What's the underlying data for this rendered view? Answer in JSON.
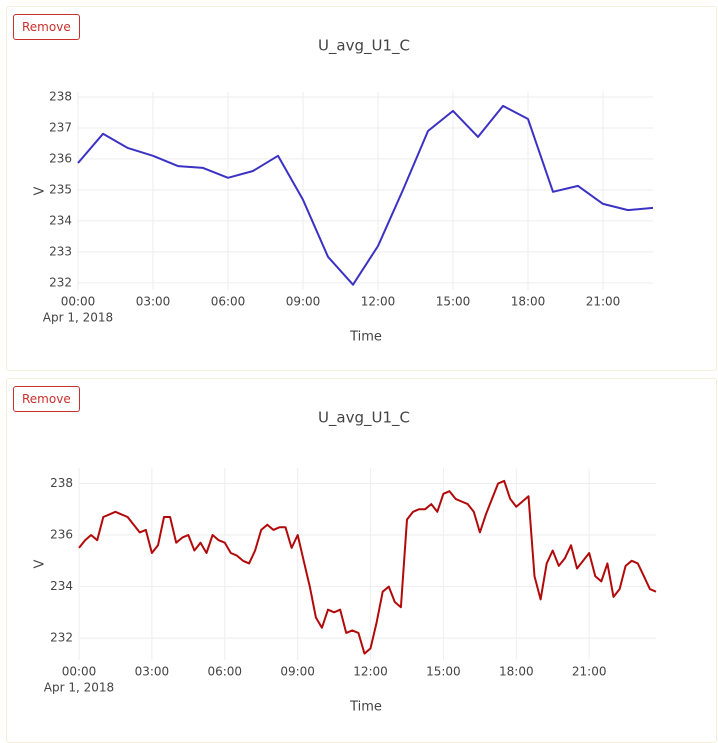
{
  "buttons": [
    "Remove",
    "Remove"
  ],
  "chart_data": [
    {
      "type": "line",
      "title": "U_avg_U1_C",
      "xlabel": "Time",
      "ylabel": "V",
      "color": "#3b32c4",
      "grid": true,
      "x": [
        "2018-04-01T00:00",
        "2018-04-01T01:00",
        "2018-04-01T02:00",
        "2018-04-01T03:00",
        "2018-04-01T04:00",
        "2018-04-01T05:00",
        "2018-04-01T06:00",
        "2018-04-01T07:00",
        "2018-04-01T08:00",
        "2018-04-01T09:00",
        "2018-04-01T10:00",
        "2018-04-01T11:00",
        "2018-04-01T12:00",
        "2018-04-01T13:00",
        "2018-04-01T14:00",
        "2018-04-01T15:00",
        "2018-04-01T16:00",
        "2018-04-01T17:00",
        "2018-04-01T18:00",
        "2018-04-01T19:00",
        "2018-04-01T20:00",
        "2018-04-01T21:00",
        "2018-04-01T22:00",
        "2018-04-01T23:00"
      ],
      "values": [
        235.87,
        236.81,
        236.35,
        236.1,
        235.77,
        235.71,
        235.39,
        235.61,
        236.1,
        234.68,
        232.84,
        231.94,
        233.19,
        235.0,
        236.9,
        237.55,
        236.71,
        237.71,
        237.29,
        234.94,
        235.13,
        234.55,
        234.35,
        234.42
      ],
      "xlim": [
        "2018-04-01T00:00",
        "2018-04-01T23:00"
      ],
      "xticks": [
        {
          "value": "2018-04-01T00:00",
          "label": "00:00"
        },
        {
          "value": "2018-04-01T03:00",
          "label": "03:00"
        },
        {
          "value": "2018-04-01T06:00",
          "label": "06:00"
        },
        {
          "value": "2018-04-01T09:00",
          "label": "09:00"
        },
        {
          "value": "2018-04-01T12:00",
          "label": "12:00"
        },
        {
          "value": "2018-04-01T15:00",
          "label": "15:00"
        },
        {
          "value": "2018-04-01T18:00",
          "label": "18:00"
        },
        {
          "value": "2018-04-01T21:00",
          "label": "21:00"
        }
      ],
      "xtick_sublabel": "Apr 1, 2018",
      "ylim": [
        231.77,
        238.16
      ],
      "yticks": [
        232,
        233,
        234,
        235,
        236,
        237,
        238
      ]
    },
    {
      "type": "line",
      "title": "U_avg_U1_C",
      "xlabel": "Time",
      "ylabel": "V",
      "color": "#b20a0a",
      "grid": true,
      "x": [
        "2018-04-01T00:00",
        "2018-04-01T00:15",
        "2018-04-01T00:30",
        "2018-04-01T00:45",
        "2018-04-01T01:00",
        "2018-04-01T01:15",
        "2018-04-01T01:30",
        "2018-04-01T01:45",
        "2018-04-01T02:00",
        "2018-04-01T02:15",
        "2018-04-01T02:30",
        "2018-04-01T02:45",
        "2018-04-01T03:00",
        "2018-04-01T03:15",
        "2018-04-01T03:30",
        "2018-04-01T03:45",
        "2018-04-01T04:00",
        "2018-04-01T04:15",
        "2018-04-01T04:30",
        "2018-04-01T04:45",
        "2018-04-01T05:00",
        "2018-04-01T05:15",
        "2018-04-01T05:30",
        "2018-04-01T05:45",
        "2018-04-01T06:00",
        "2018-04-01T06:15",
        "2018-04-01T06:30",
        "2018-04-01T06:45",
        "2018-04-01T07:00",
        "2018-04-01T07:15",
        "2018-04-01T07:30",
        "2018-04-01T07:45",
        "2018-04-01T08:00",
        "2018-04-01T08:15",
        "2018-04-01T08:30",
        "2018-04-01T08:45",
        "2018-04-01T09:00",
        "2018-04-01T09:15",
        "2018-04-01T09:30",
        "2018-04-01T09:45",
        "2018-04-01T10:00",
        "2018-04-01T10:15",
        "2018-04-01T10:30",
        "2018-04-01T10:45",
        "2018-04-01T11:00",
        "2018-04-01T11:15",
        "2018-04-01T11:30",
        "2018-04-01T11:45",
        "2018-04-01T12:00",
        "2018-04-01T12:15",
        "2018-04-01T12:30",
        "2018-04-01T12:45",
        "2018-04-01T13:00",
        "2018-04-01T13:15",
        "2018-04-01T13:30",
        "2018-04-01T13:45",
        "2018-04-01T14:00",
        "2018-04-01T14:15",
        "2018-04-01T14:30",
        "2018-04-01T14:45",
        "2018-04-01T15:00",
        "2018-04-01T15:15",
        "2018-04-01T15:30",
        "2018-04-01T15:45",
        "2018-04-01T16:00",
        "2018-04-01T16:15",
        "2018-04-01T16:30",
        "2018-04-01T16:45",
        "2018-04-01T17:00",
        "2018-04-01T17:15",
        "2018-04-01T17:30",
        "2018-04-01T17:45",
        "2018-04-01T18:00",
        "2018-04-01T18:15",
        "2018-04-01T18:30",
        "2018-04-01T18:45",
        "2018-04-01T19:00",
        "2018-04-01T19:15",
        "2018-04-01T19:30",
        "2018-04-01T19:45",
        "2018-04-01T20:00",
        "2018-04-01T20:15",
        "2018-04-01T20:30",
        "2018-04-01T20:45",
        "2018-04-01T21:00",
        "2018-04-01T21:15",
        "2018-04-01T21:30",
        "2018-04-01T21:45",
        "2018-04-01T22:00",
        "2018-04-01T22:15",
        "2018-04-01T22:30",
        "2018-04-01T22:45",
        "2018-04-01T23:00",
        "2018-04-01T23:15",
        "2018-04-01T23:30",
        "2018-04-01T23:45"
      ],
      "values": [
        235.5,
        235.8,
        236.0,
        235.8,
        236.7,
        236.8,
        236.9,
        236.8,
        236.7,
        236.4,
        236.1,
        236.2,
        235.3,
        235.6,
        236.7,
        236.7,
        235.7,
        235.9,
        236.0,
        235.4,
        235.7,
        235.3,
        236.0,
        235.8,
        235.7,
        235.3,
        235.2,
        235.0,
        234.9,
        235.4,
        236.2,
        236.4,
        236.2,
        236.3,
        236.3,
        235.5,
        236.0,
        235.0,
        234.0,
        232.8,
        232.4,
        233.1,
        233.0,
        233.1,
        232.2,
        232.3,
        232.2,
        231.4,
        231.6,
        232.6,
        233.8,
        234.0,
        233.4,
        233.2,
        236.6,
        236.9,
        237.0,
        237.0,
        237.2,
        236.9,
        237.6,
        237.7,
        237.4,
        237.3,
        237.2,
        236.9,
        236.1,
        236.8,
        237.4,
        238.0,
        238.1,
        237.4,
        237.1,
        237.3,
        237.5,
        234.4,
        233.5,
        234.9,
        235.4,
        234.8,
        235.1,
        235.6,
        234.7,
        235.0,
        235.3,
        234.4,
        234.2,
        234.9,
        233.6,
        233.9,
        234.8,
        235.0,
        234.9,
        234.4,
        233.9,
        233.8
      ],
      "xlim": [
        "2018-04-01T00:00",
        "2018-04-01T23:45"
      ],
      "xticks": [
        {
          "value": "2018-04-01T00:00",
          "label": "00:00"
        },
        {
          "value": "2018-04-01T03:00",
          "label": "03:00"
        },
        {
          "value": "2018-04-01T06:00",
          "label": "06:00"
        },
        {
          "value": "2018-04-01T09:00",
          "label": "09:00"
        },
        {
          "value": "2018-04-01T12:00",
          "label": "12:00"
        },
        {
          "value": "2018-04-01T15:00",
          "label": "15:00"
        },
        {
          "value": "2018-04-01T18:00",
          "label": "18:00"
        },
        {
          "value": "2018-04-01T21:00",
          "label": "21:00"
        }
      ],
      "xtick_sublabel": "Apr 1, 2018",
      "ylim": [
        231.15,
        238.6
      ],
      "yticks": [
        232,
        234,
        236,
        238
      ]
    }
  ]
}
